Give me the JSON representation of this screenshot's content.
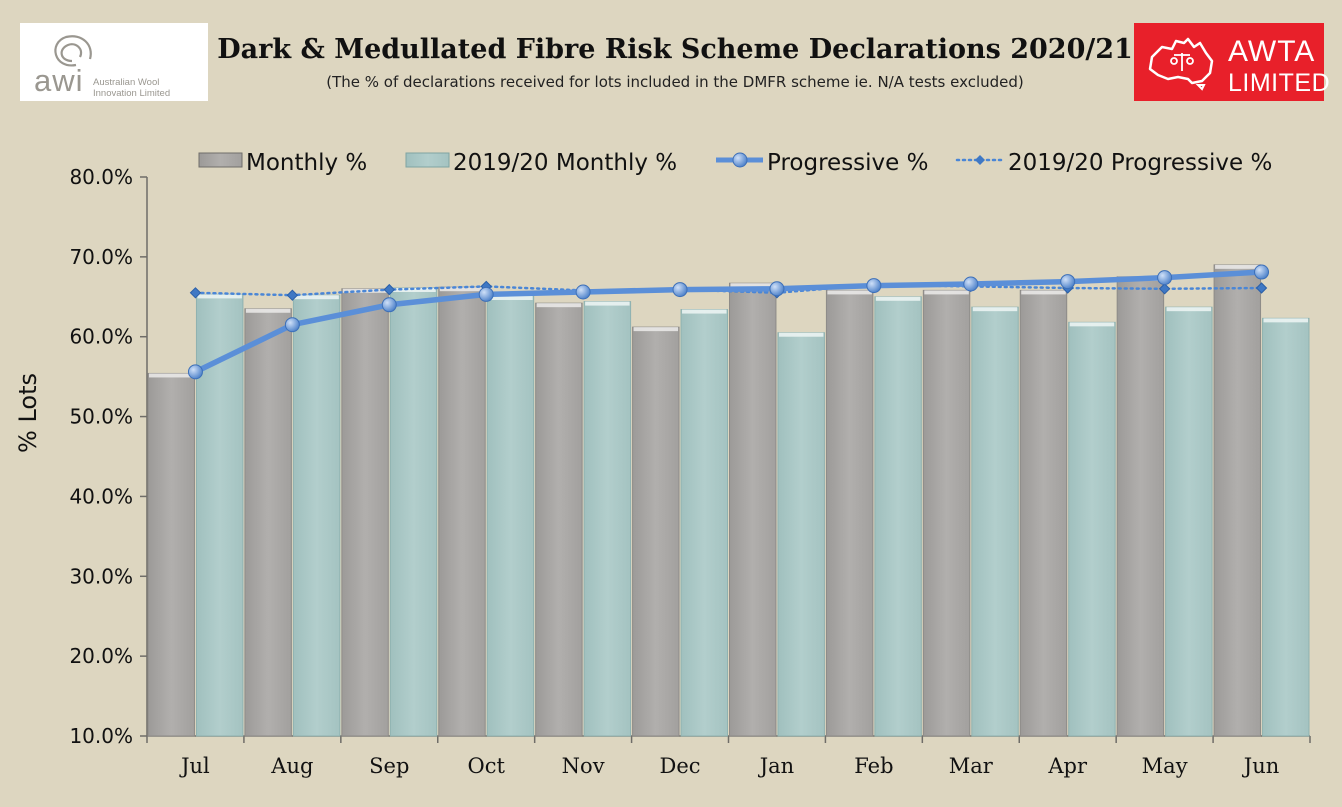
{
  "header": {
    "title": "Dark & Medullated Fibre Risk Scheme Declarations 2020/21",
    "subtitle": "(The % of declarations received for lots included in the DMFR scheme ie. N/A tests excluded)"
  },
  "logos": {
    "awi_word": "awi",
    "awi_sub_line1": "Australian Wool",
    "awi_sub_line2": "Innovation Limited",
    "awta_word": "AWTA",
    "awta_sub": "LIMITED"
  },
  "colors": {
    "background": "#ddd6c0",
    "monthly_bar": "#a9a7a5",
    "prev_monthly_bar": "#a9c7c5",
    "progressive_line": "#5b8fd8",
    "prev_progressive_line": "#4a86d6"
  },
  "chart_data": {
    "type": "bar",
    "categories": [
      "Jul",
      "Aug",
      "Sep",
      "Oct",
      "Nov",
      "Dec",
      "Jan",
      "Feb",
      "Mar",
      "Apr",
      "May",
      "Jun"
    ],
    "ylabel": "% Lots",
    "ylim": [
      10,
      80
    ],
    "yticks": [
      10,
      20,
      30,
      40,
      50,
      60,
      70,
      80
    ],
    "ytick_labels": [
      "10.0%",
      "20.0%",
      "30.0%",
      "40.0%",
      "50.0%",
      "60.0%",
      "70.0%",
      "80.0%"
    ],
    "legend_position": "top",
    "series": [
      {
        "name": "Monthly %",
        "type": "bar",
        "values": [
          55.4,
          63.5,
          66.0,
          66.2,
          64.2,
          61.2,
          66.7,
          65.8,
          65.8,
          65.8,
          67.5,
          69.0
        ]
      },
      {
        "name": "2019/20 Monthly %",
        "type": "bar",
        "values": [
          65.3,
          65.2,
          66.1,
          65.1,
          64.4,
          63.4,
          60.5,
          65.0,
          63.7,
          61.8,
          63.7,
          62.3
        ]
      },
      {
        "name": "Progressive %",
        "type": "line",
        "values": [
          55.6,
          61.5,
          64.0,
          65.3,
          65.6,
          65.9,
          66.0,
          66.4,
          66.6,
          66.9,
          67.4,
          68.1
        ]
      },
      {
        "name": "2019/20 Progressive %",
        "type": "line-dotted",
        "values": [
          65.5,
          65.2,
          65.9,
          66.3,
          65.8,
          65.9,
          65.5,
          66.5,
          66.3,
          66.1,
          66.0,
          66.1
        ]
      }
    ]
  }
}
